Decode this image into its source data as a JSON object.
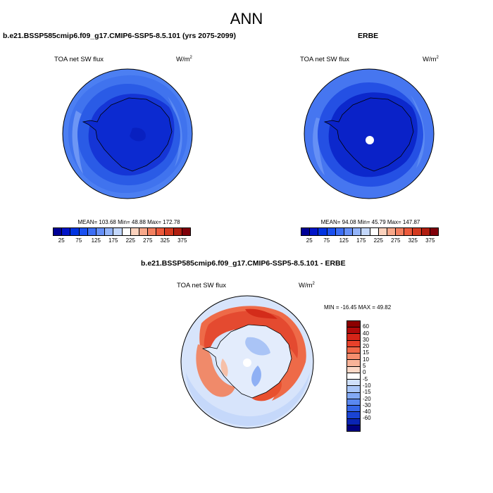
{
  "title": "ANN",
  "panels": {
    "model": {
      "title": "b.e21.BSSP585cmip6.f09_g17.CMIP6-SSP5-8.5.101 (yrs 2075-2099)",
      "var_label": "TOA net SW flux",
      "units_base": "W/m",
      "units_exp": "2",
      "stats": "MEAN= 103.68  Min=  48.88  Max= 172.78"
    },
    "obs": {
      "title": "ERBE",
      "var_label": "TOA net SW flux",
      "units_base": "W/m",
      "units_exp": "2",
      "stats": "MEAN=  94.08  Min=  45.79  Max= 147.87"
    },
    "diff": {
      "title": "b.e21.BSSP585cmip6.f09_g17.CMIP6-SSP5-8.5.101 - ERBE",
      "var_label": "TOA net SW flux",
      "units_base": "W/m",
      "units_exp": "2",
      "stats": "MIN = -16.45 MAX =  49.82"
    }
  },
  "colorbar_abs": {
    "colors": [
      "#000096",
      "#0014c8",
      "#0033e0",
      "#1a50f0",
      "#3c6ef5",
      "#6690f7",
      "#93b4f9",
      "#c3d7fb",
      "#ffffff",
      "#fbd2bd",
      "#f7a88a",
      "#f28060",
      "#ec5a3c",
      "#d43a20",
      "#b01e10",
      "#80000a"
    ],
    "ticks": [
      "25",
      "75",
      "125",
      "175",
      "225",
      "275",
      "325",
      "375"
    ]
  },
  "colorbar_diff": {
    "colors": [
      "#8c0000",
      "#b00a0a",
      "#d42418",
      "#e8412a",
      "#f06848",
      "#f58e6e",
      "#f8b398",
      "#fbd8c6",
      "#ffffff",
      "#cfe0fb",
      "#a9c6f8",
      "#82a9f5",
      "#5a88f0",
      "#3666e6",
      "#1a44d4",
      "#0a24b4",
      "#000080"
    ],
    "ticks": [
      "60",
      "40",
      "30",
      "20",
      "15",
      "10",
      "5",
      "0",
      "-5",
      "-10",
      "-15",
      "-20",
      "-30",
      "-40",
      "-60"
    ]
  }
}
